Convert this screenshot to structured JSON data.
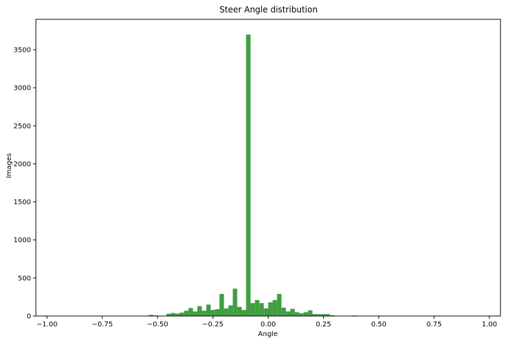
{
  "chart_data": {
    "type": "bar",
    "title": "Steer Angle distribution",
    "xlabel": "Angle",
    "ylabel": "Images",
    "xlim": [
      -1.05,
      1.05
    ],
    "ylim": [
      0,
      3900
    ],
    "grid": false,
    "legend": "none",
    "bar_color": "#3f9e3f",
    "bin_width": 0.02,
    "x_ticks": [
      -1.0,
      -0.75,
      -0.5,
      -0.25,
      0.0,
      0.25,
      0.5,
      0.75,
      1.0
    ],
    "x_tick_labels": [
      "−1.00",
      "−0.75",
      "−0.50",
      "−0.25",
      "0.00",
      "0.25",
      "0.50",
      "0.75",
      "1.00"
    ],
    "y_ticks": [
      0,
      500,
      1000,
      1500,
      2000,
      2500,
      3000,
      3500
    ],
    "y_tick_labels": [
      "0",
      "500",
      "1000",
      "1500",
      "2000",
      "2500",
      "3000",
      "3500"
    ],
    "bins": [
      {
        "x": -0.54,
        "value": 15
      },
      {
        "x": -0.52,
        "value": 8
      },
      {
        "x": -0.46,
        "value": 30
      },
      {
        "x": -0.44,
        "value": 40
      },
      {
        "x": -0.42,
        "value": 32
      },
      {
        "x": -0.4,
        "value": 45
      },
      {
        "x": -0.38,
        "value": 70
      },
      {
        "x": -0.36,
        "value": 105
      },
      {
        "x": -0.34,
        "value": 60
      },
      {
        "x": -0.32,
        "value": 130
      },
      {
        "x": -0.3,
        "value": 70
      },
      {
        "x": -0.28,
        "value": 150
      },
      {
        "x": -0.26,
        "value": 80
      },
      {
        "x": -0.24,
        "value": 90
      },
      {
        "x": -0.22,
        "value": 290
      },
      {
        "x": -0.2,
        "value": 100
      },
      {
        "x": -0.18,
        "value": 140
      },
      {
        "x": -0.16,
        "value": 360
      },
      {
        "x": -0.14,
        "value": 120
      },
      {
        "x": -0.12,
        "value": 80
      },
      {
        "x": -0.1,
        "value": 3700
      },
      {
        "x": -0.08,
        "value": 170
      },
      {
        "x": -0.06,
        "value": 210
      },
      {
        "x": -0.04,
        "value": 170
      },
      {
        "x": -0.02,
        "value": 100
      },
      {
        "x": 0.0,
        "value": 180
      },
      {
        "x": 0.02,
        "value": 210
      },
      {
        "x": 0.04,
        "value": 290
      },
      {
        "x": 0.06,
        "value": 110
      },
      {
        "x": 0.08,
        "value": 60
      },
      {
        "x": 0.1,
        "value": 95
      },
      {
        "x": 0.12,
        "value": 50
      },
      {
        "x": 0.14,
        "value": 35
      },
      {
        "x": 0.16,
        "value": 50
      },
      {
        "x": 0.18,
        "value": 75
      },
      {
        "x": 0.2,
        "value": 25
      },
      {
        "x": 0.22,
        "value": 25
      },
      {
        "x": 0.24,
        "value": 25
      },
      {
        "x": 0.26,
        "value": 25
      },
      {
        "x": 0.28,
        "value": 10
      },
      {
        "x": 0.38,
        "value": 8
      }
    ]
  }
}
